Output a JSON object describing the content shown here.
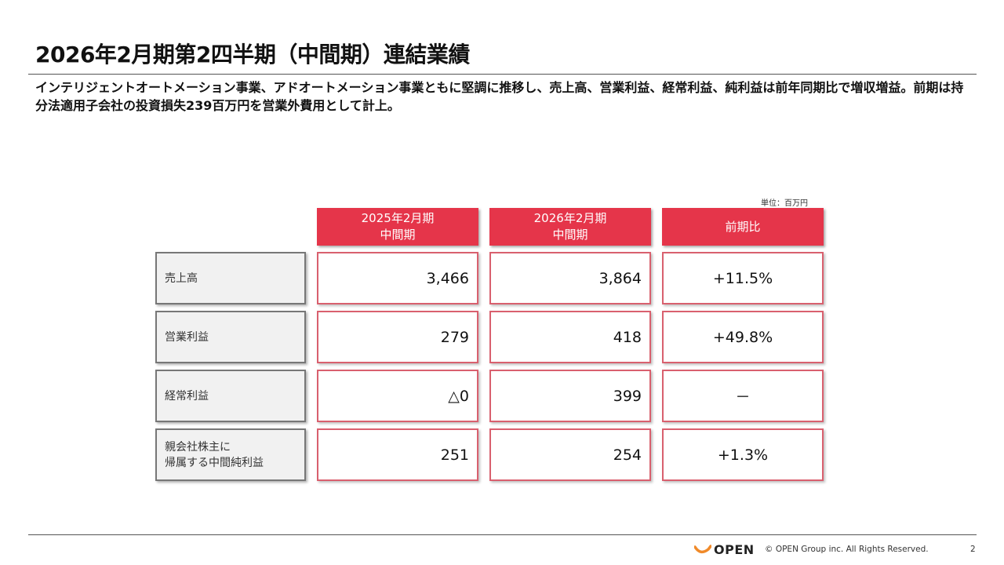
{
  "title": "2026年2月期第2四半期（中間期）連結業績",
  "summary": "インテリジェントオートメーション事業、アドオートメーション事業ともに堅調に推移し、売上高、営業利益、経常利益、純利益は前年同期比で増収増益。前期は持分法適用子会社の投資損失239百万円を営業外費用として計上。",
  "unit": "単位：百万円",
  "table": {
    "headers": [
      {
        "line1": "2025年2月期",
        "line2": "中間期"
      },
      {
        "line1": "2026年2月期",
        "line2": "中間期"
      },
      {
        "line1": "前期比",
        "line2": ""
      }
    ],
    "rows": [
      {
        "label": "売上高",
        "label2": "",
        "prev": "3,466",
        "curr": "3,864",
        "change": "+11.5%"
      },
      {
        "label": "営業利益",
        "label2": "",
        "prev": "279",
        "curr": "418",
        "change": "+49.8%"
      },
      {
        "label": "経常利益",
        "label2": "",
        "prev": "△0",
        "curr": "399",
        "change": "－"
      },
      {
        "label": "親会社株主に",
        "label2": "帰属する中間純利益",
        "prev": "251",
        "curr": "254",
        "change": "+1.3%"
      }
    ]
  },
  "footer": {
    "logo": "OPEN",
    "copyright": "© OPEN Group inc. All Rights Reserved.",
    "page": "2"
  },
  "colors": {
    "accent": "#e5354a",
    "label_bg": "#f1f1f1"
  }
}
